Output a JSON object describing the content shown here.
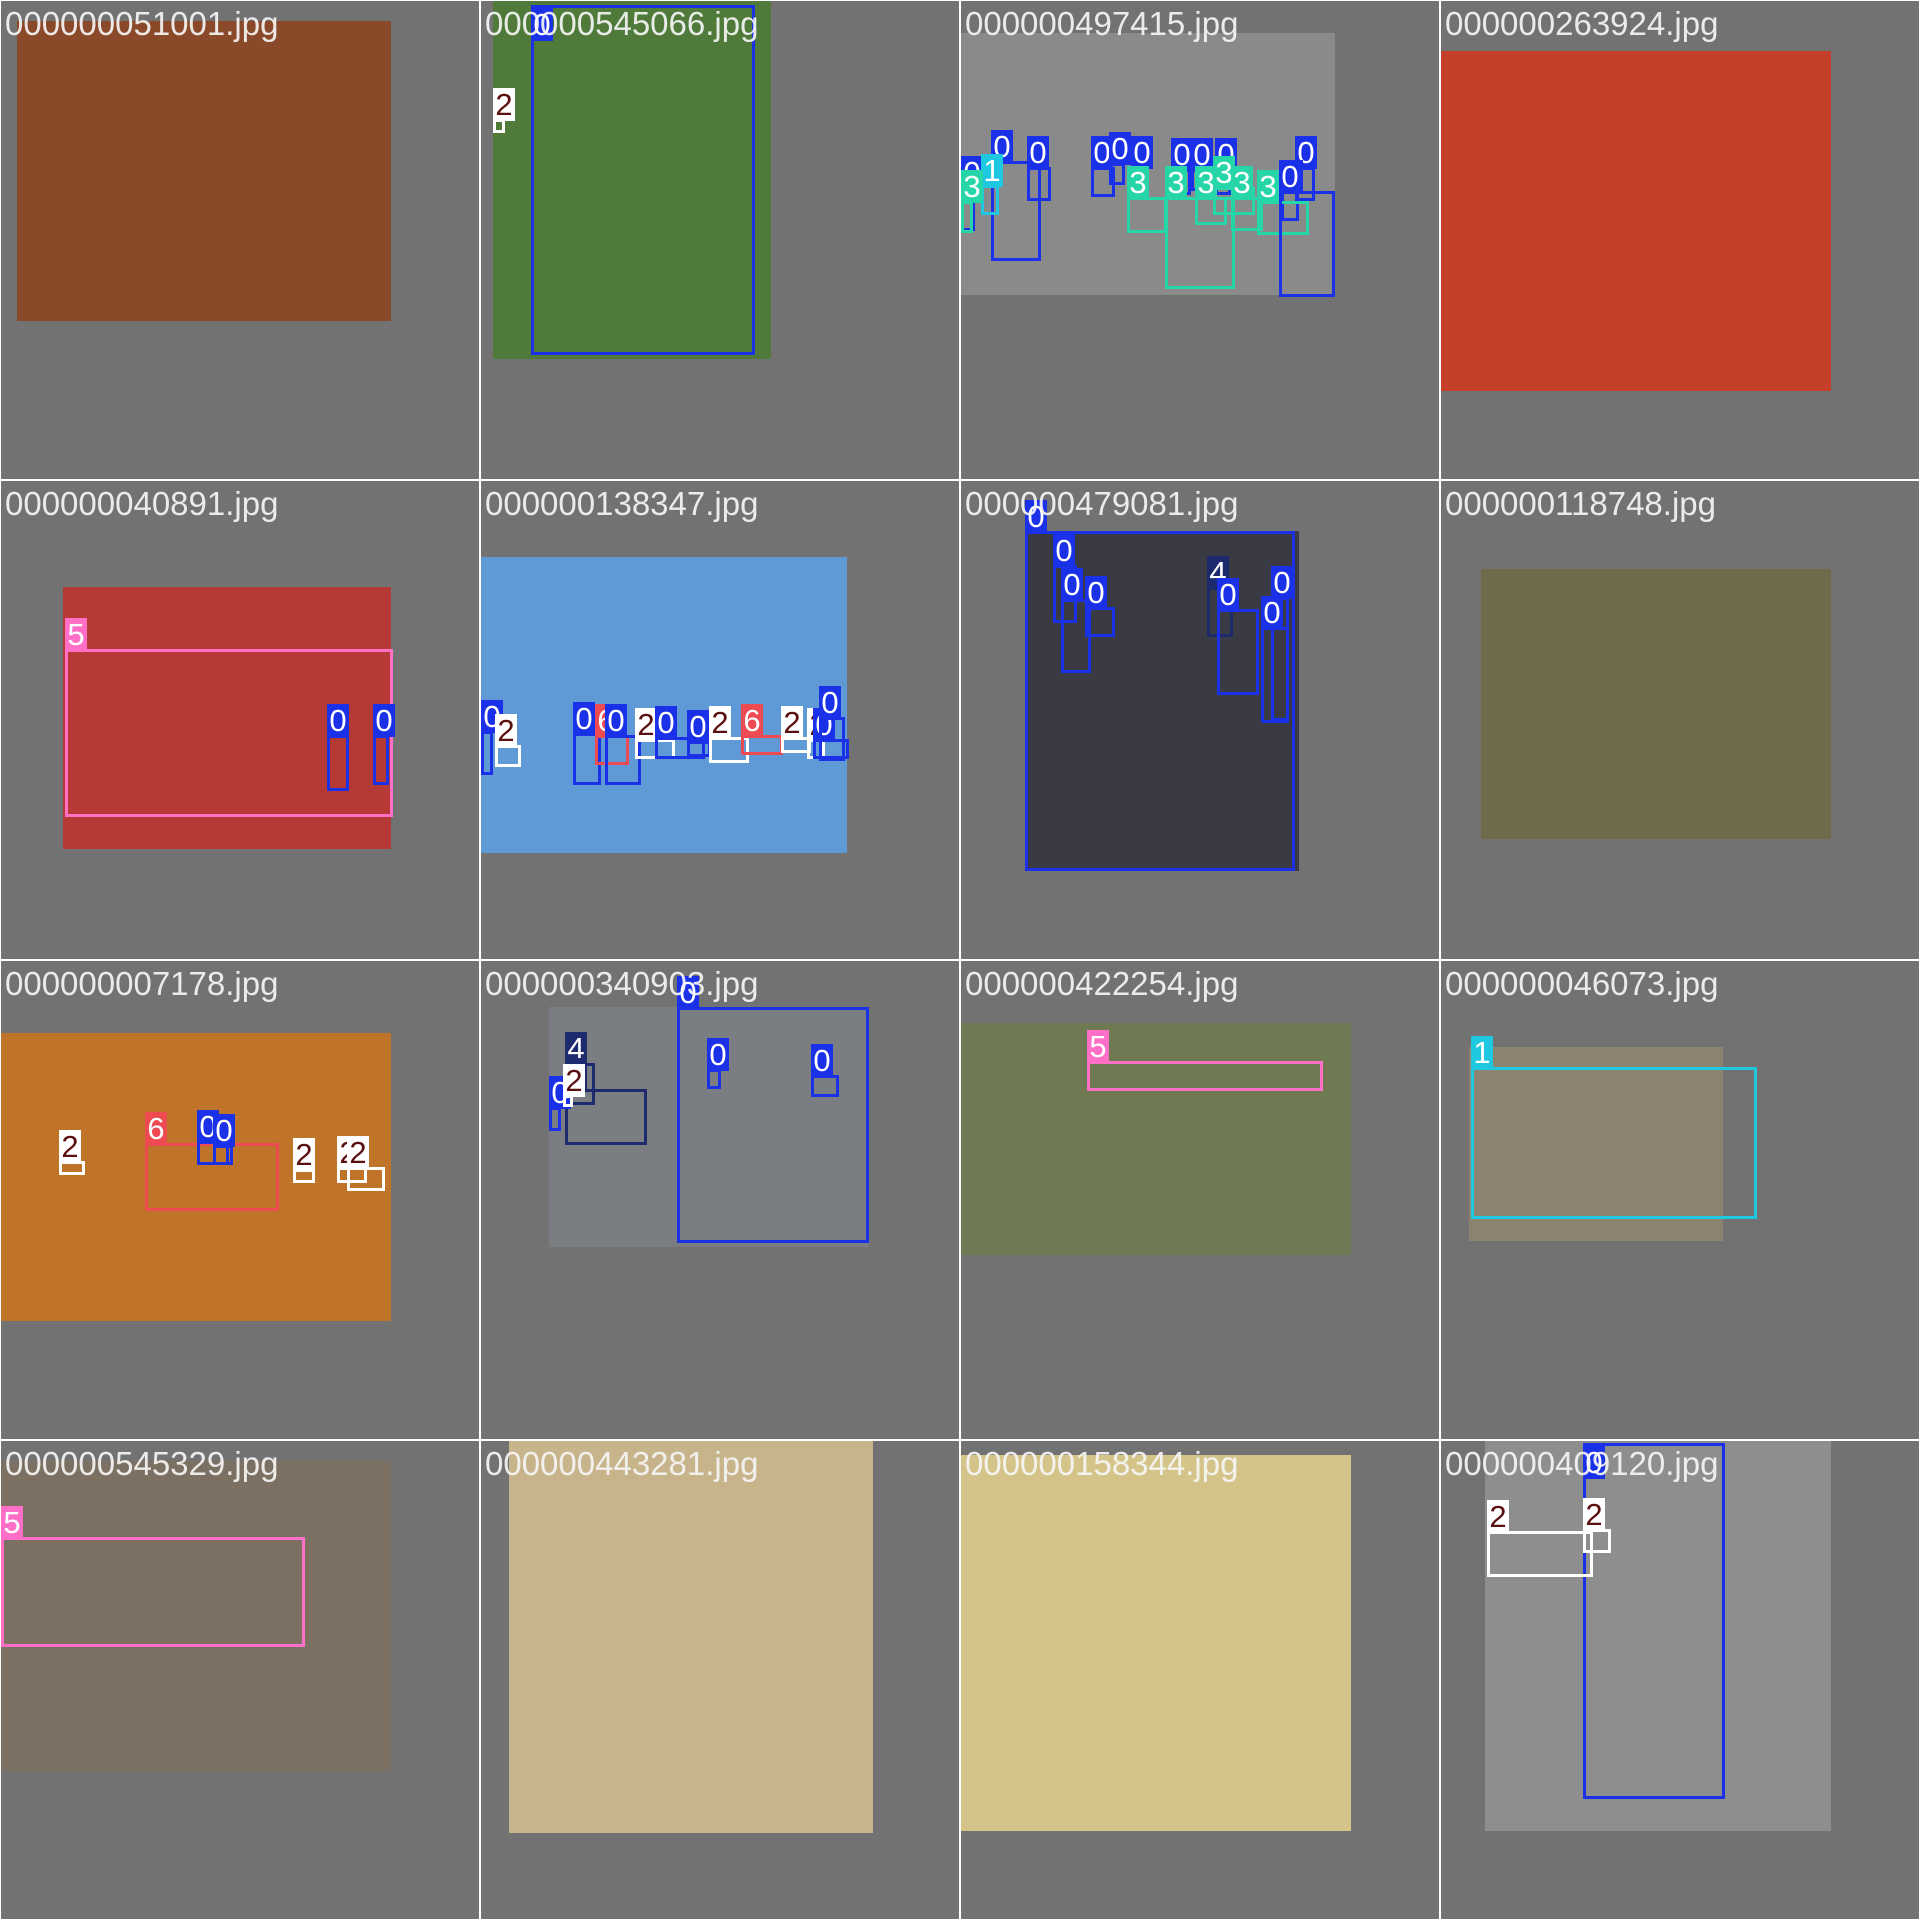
{
  "class_colors": {
    "0": "#1a31e8",
    "1": "#1ec8e0",
    "2": "#ffffff",
    "3": "#27d6a8",
    "4": "#1e2a6e",
    "5": "#ff6fc8",
    "6": "#ee4a52"
  },
  "tiles": [
    {
      "filename": "000000051001.jpg",
      "photo_color": "#8a4a2a",
      "boxes": []
    },
    {
      "filename": "000000545066.jpg",
      "photo_color": "#4f7a3a",
      "boxes": [
        {
          "label": "0"
        },
        {
          "label": "2"
        }
      ]
    },
    {
      "filename": "000000497415.jpg",
      "photo_color": "#8a8a8a",
      "boxes": [
        {
          "label": "0"
        },
        {
          "label": "0"
        },
        {
          "label": "0"
        },
        {
          "label": "0"
        },
        {
          "label": "0"
        },
        {
          "label": "0"
        },
        {
          "label": "0"
        },
        {
          "label": "0"
        },
        {
          "label": "0"
        },
        {
          "label": "0"
        },
        {
          "label": "0"
        },
        {
          "label": "1"
        },
        {
          "label": "3"
        },
        {
          "label": "3"
        },
        {
          "label": "3"
        },
        {
          "label": "3"
        },
        {
          "label": "3"
        },
        {
          "label": "3"
        },
        {
          "label": "3"
        },
        {
          "label": "0"
        }
      ]
    },
    {
      "filename": "000000263924.jpg",
      "photo_color": "#c4402a",
      "boxes": []
    },
    {
      "filename": "000000040891.jpg",
      "photo_color": "#b53a35",
      "boxes": [
        {
          "label": "5"
        },
        {
          "label": "0"
        },
        {
          "label": "0"
        }
      ]
    },
    {
      "filename": "000000138347.jpg",
      "photo_color": "#5f9ad6",
      "boxes": [
        {
          "label": "0"
        },
        {
          "label": "2"
        },
        {
          "label": "0"
        },
        {
          "label": "6"
        },
        {
          "label": "0"
        },
        {
          "label": "2"
        },
        {
          "label": "0"
        },
        {
          "label": "0"
        },
        {
          "label": "2"
        },
        {
          "label": "6"
        },
        {
          "label": "2"
        },
        {
          "label": "2"
        },
        {
          "label": "0"
        },
        {
          "label": "0"
        }
      ]
    },
    {
      "filename": "000000479081.jpg",
      "photo_color": "#3a3a44",
      "boxes": [
        {
          "label": "0"
        },
        {
          "label": "0"
        },
        {
          "label": "0"
        },
        {
          "label": "0"
        },
        {
          "label": "4"
        },
        {
          "label": "0"
        },
        {
          "label": "0"
        },
        {
          "label": "0"
        }
      ]
    },
    {
      "filename": "000000118748.jpg",
      "photo_color": "#6f6a4a",
      "boxes": []
    },
    {
      "filename": "000000007178.jpg",
      "photo_color": "#c0742a",
      "boxes": [
        {
          "label": "2"
        },
        {
          "label": "6"
        },
        {
          "label": "0"
        },
        {
          "label": "0"
        },
        {
          "label": "2"
        },
        {
          "label": "2"
        },
        {
          "label": "2"
        }
      ]
    },
    {
      "filename": "000000340903.jpg",
      "photo_color": "#7a7e82",
      "boxes": [
        {
          "label": "4"
        },
        {
          "label": "4"
        },
        {
          "label": "0"
        },
        {
          "label": "2"
        },
        {
          "label": "0"
        },
        {
          "label": "0"
        },
        {
          "label": "0"
        }
      ]
    },
    {
      "filename": "000000422254.jpg",
      "photo_color": "#6f7a52",
      "boxes": [
        {
          "label": "5"
        }
      ]
    },
    {
      "filename": "000000046073.jpg",
      "photo_color": "#8c8470",
      "boxes": [
        {
          "label": "1"
        }
      ]
    },
    {
      "filename": "000000545329.jpg",
      "photo_color": "#7c7062",
      "boxes": [
        {
          "label": "5"
        }
      ]
    },
    {
      "filename": "000000443281.jpg",
      "photo_color": "#c8b48a",
      "boxes": []
    },
    {
      "filename": "000000158344.jpg",
      "photo_color": "#d4c48a",
      "boxes": []
    },
    {
      "filename": "000000409120.jpg",
      "photo_color": "#8e8e8e",
      "boxes": [
        {
          "label": "0"
        },
        {
          "label": "2"
        },
        {
          "label": "2"
        }
      ]
    }
  ]
}
